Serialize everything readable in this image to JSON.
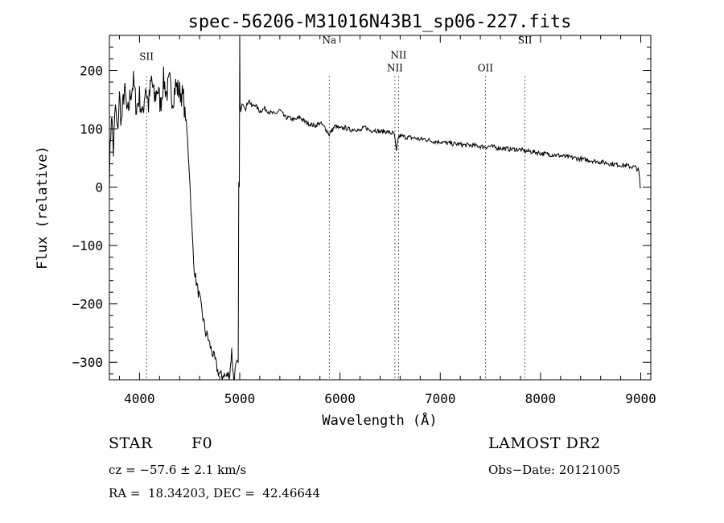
{
  "chart_data": {
    "type": "line",
    "title": "spec-56206-M31016N43B1_sp06-227.fits",
    "xlabel": "Wavelength (Å)",
    "ylabel": "Flux (relative)",
    "xlim": [
      3700,
      9100
    ],
    "ylim": [
      -330,
      260
    ],
    "x_ticks": [
      4000,
      5000,
      6000,
      7000,
      8000,
      9000
    ],
    "x_tick_labels": [
      "4000",
      "5000",
      "6000",
      "7000",
      "8000",
      "9000"
    ],
    "y_ticks": [
      -300,
      -200,
      -100,
      0,
      100,
      200
    ],
    "y_tick_labels": [
      "−300",
      "−200",
      "−100",
      "0",
      "100",
      "200"
    ],
    "grid": false,
    "legend": "none",
    "line_color": "#000000",
    "lines": [
      {
        "label": "SII",
        "x": 4070,
        "label_y": 218
      },
      {
        "label": "Na",
        "x": 5893,
        "label_y": 246
      },
      {
        "label": "NII",
        "x": 6548,
        "label_y": 199
      },
      {
        "label": "NII",
        "x": 6584,
        "label_y": 221
      },
      {
        "label": "OII",
        "x": 7450,
        "label_y": 199
      },
      {
        "label": "SII",
        "x": 7845,
        "label_y": 246
      }
    ],
    "series": [
      {
        "x": [
          3700,
          3720,
          3740,
          3760,
          3780,
          3800,
          3820,
          3850,
          3880,
          3910,
          3940,
          3970,
          4000,
          4030,
          4060,
          4090,
          4120,
          4150,
          4180,
          4210,
          4240,
          4270,
          4300,
          4330,
          4360,
          4390,
          4420,
          4440,
          4460,
          4480,
          4500,
          4520,
          4540,
          4560,
          4580,
          4600,
          4620,
          4640,
          4660,
          4680,
          4700,
          4720,
          4740,
          4760,
          4780,
          4800,
          4820,
          4840,
          4860,
          4880,
          4900,
          4920,
          4935,
          4940,
          4960,
          4985,
          4990,
          4996,
          5000,
          5003,
          5010,
          5030,
          5060,
          5090,
          5120,
          5150,
          5200,
          5250,
          5300,
          5350,
          5400,
          5450,
          5500,
          5550,
          5600,
          5650,
          5700,
          5750,
          5800,
          5850,
          5893,
          5950,
          6000,
          6050,
          6100,
          6150,
          6200,
          6250,
          6300,
          6350,
          6400,
          6450,
          6500,
          6540,
          6563,
          6580,
          6600,
          6650,
          6700,
          6750,
          6800,
          6850,
          6900,
          6950,
          7000,
          7050,
          7100,
          7150,
          7200,
          7250,
          7300,
          7350,
          7400,
          7450,
          7500,
          7550,
          7600,
          7650,
          7700,
          7750,
          7800,
          7850,
          7900,
          7950,
          8000,
          8050,
          8100,
          8150,
          8200,
          8250,
          8300,
          8350,
          8400,
          8450,
          8500,
          8550,
          8600,
          8650,
          8700,
          8750,
          8800,
          8850,
          8900,
          8950,
          8980,
          8995,
          9000
        ],
        "y": [
          20,
          130,
          60,
          140,
          90,
          155,
          110,
          170,
          120,
          160,
          180,
          135,
          155,
          120,
          175,
          140,
          185,
          150,
          170,
          140,
          185,
          160,
          180,
          150,
          175,
          165,
          160,
          150,
          120,
          80,
          20,
          -60,
          -130,
          -155,
          -175,
          -190,
          -210,
          -230,
          -250,
          -255,
          -270,
          -280,
          -290,
          -300,
          -315,
          -320,
          -325,
          -320,
          -325,
          -322,
          -320,
          -280,
          -320,
          -328,
          -310,
          -300,
          0,
          0,
          260,
          140,
          128,
          145,
          135,
          150,
          138,
          142,
          130,
          135,
          128,
          125,
          132,
          120,
          118,
          115,
          120,
          112,
          108,
          105,
          110,
          102,
          90,
          105,
          100,
          102,
          98,
          100,
          96,
          103,
          97,
          98,
          95,
          96,
          93,
          92,
          60,
          85,
          88,
          86,
          85,
          84,
          82,
          82,
          80,
          78,
          78,
          76,
          75,
          74,
          73,
          72,
          72,
          71,
          70,
          69,
          70,
          68,
          67,
          66,
          65,
          65,
          64,
          62,
          61,
          60,
          58,
          57,
          56,
          55,
          54,
          52,
          51,
          50,
          48,
          47,
          46,
          44,
          43,
          42,
          40,
          39,
          38,
          37,
          35,
          34,
          28,
          0,
          0
        ]
      }
    ]
  },
  "info": {
    "object_class": "STAR",
    "subclass": "F0",
    "survey": "LAMOST DR2",
    "cz": "cz = −57.6 ± 2.1 km/s",
    "obs_date": "Obs−Date: 20121005",
    "coords": "RA =  18.34203, DEC =  42.46644"
  }
}
